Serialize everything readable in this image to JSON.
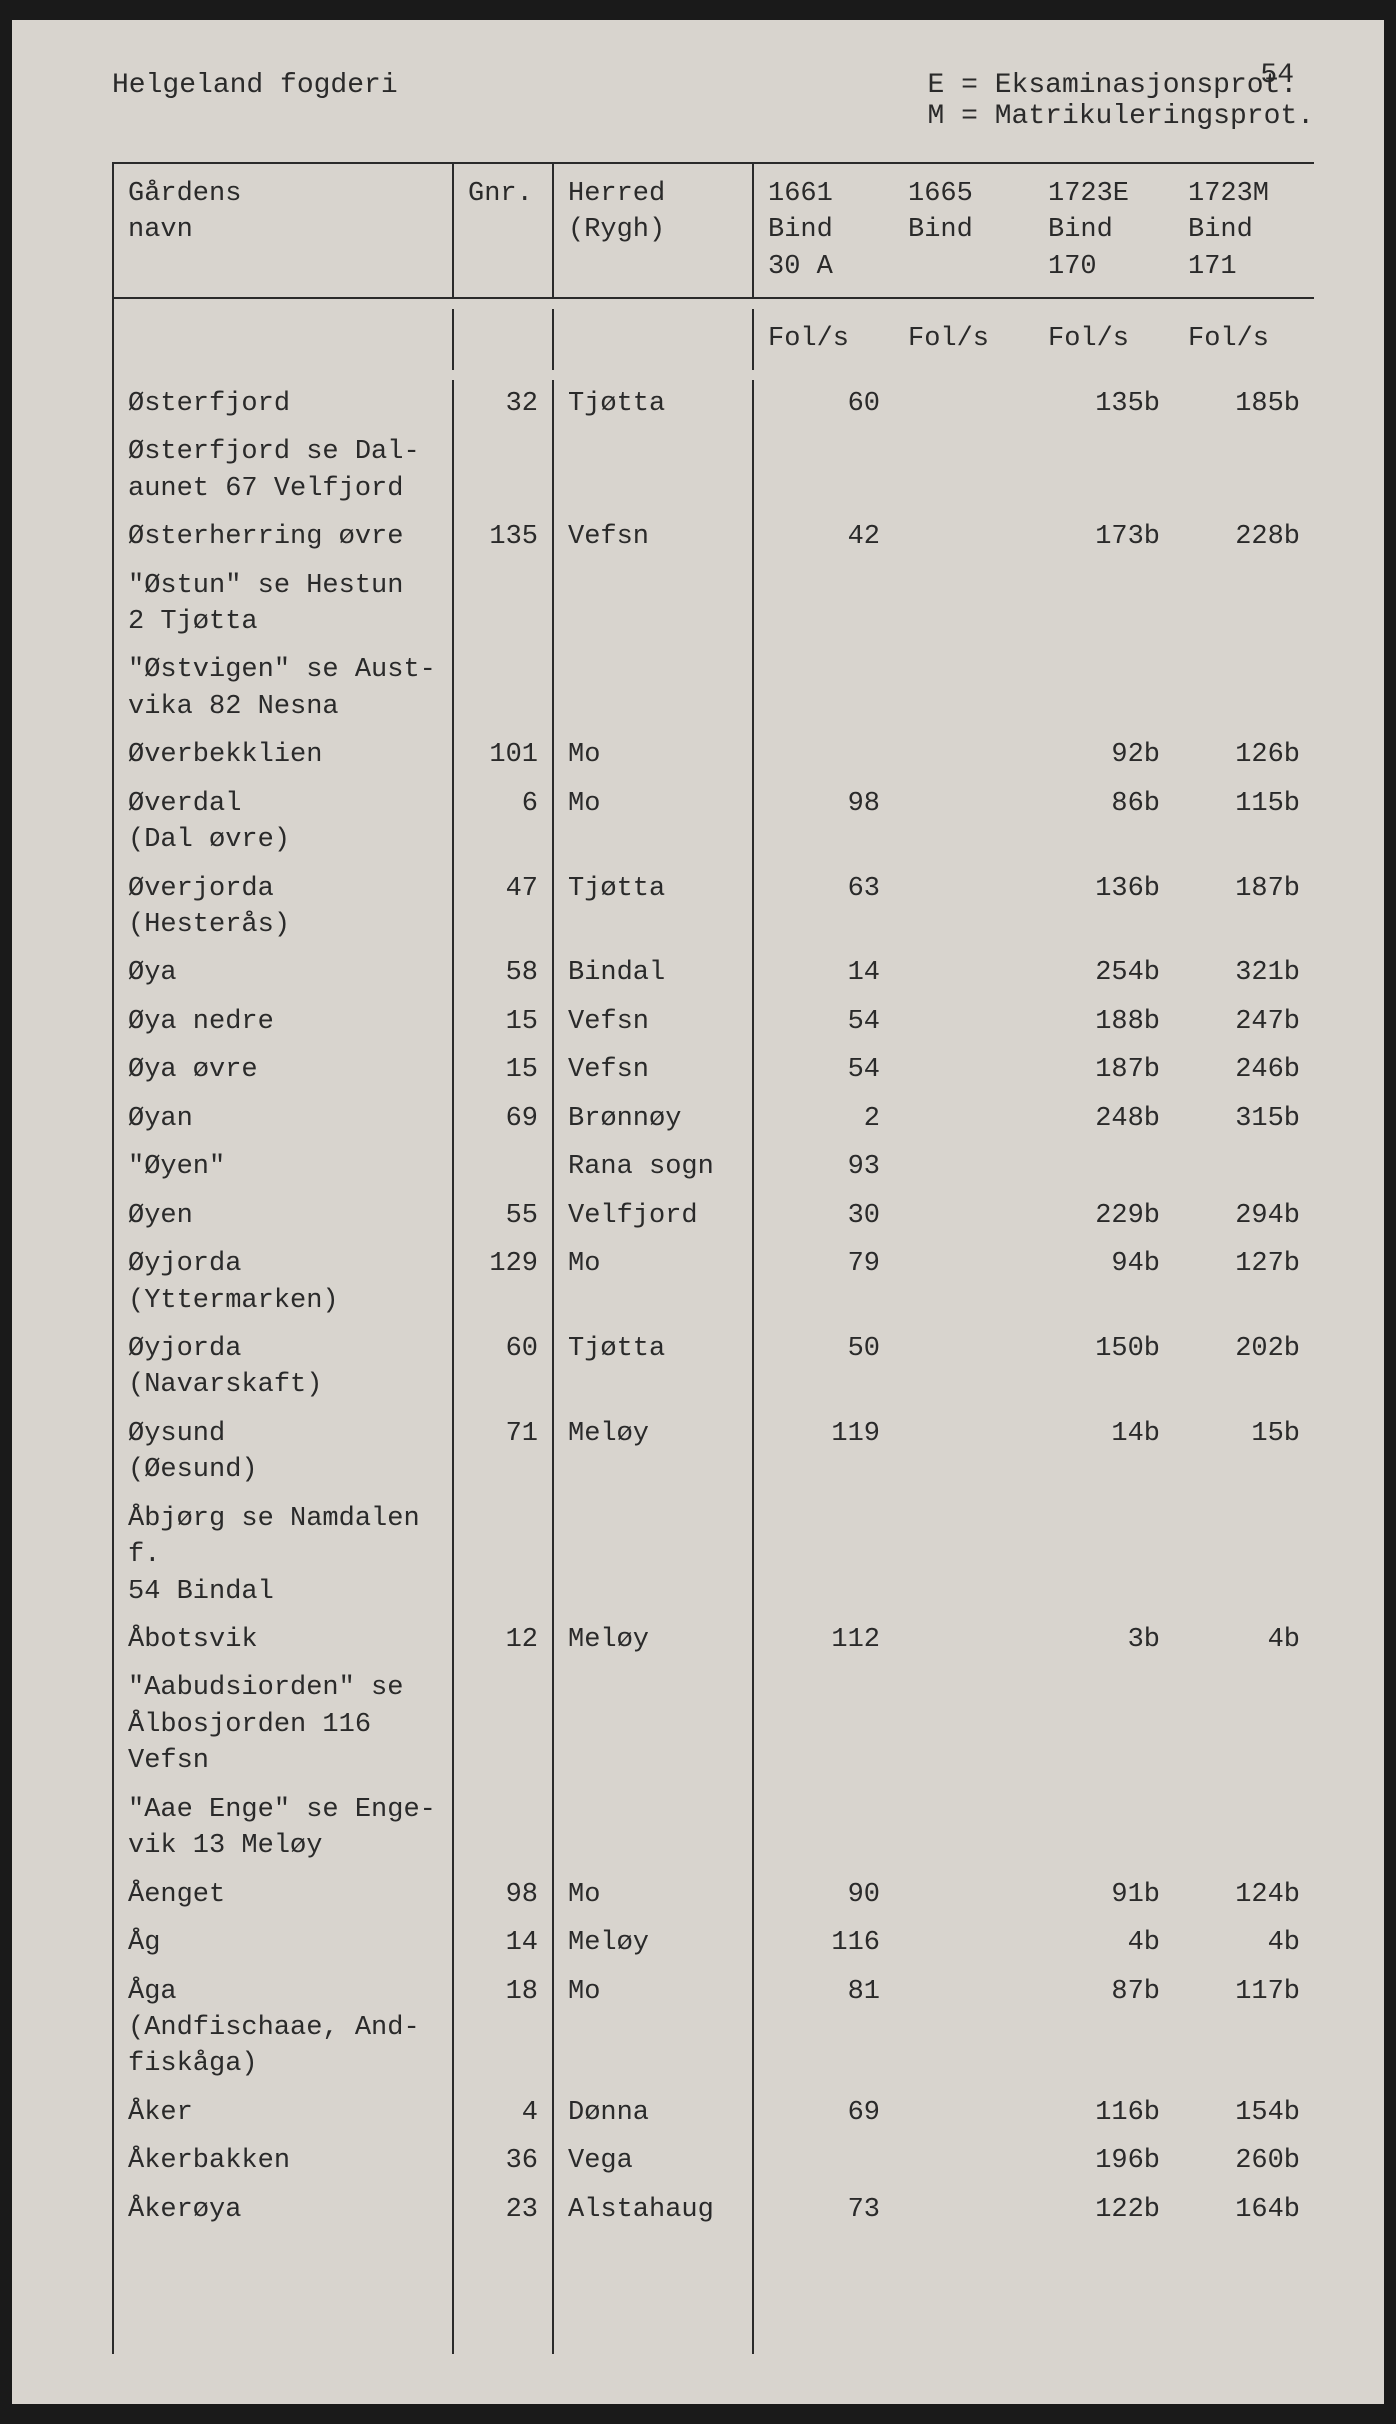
{
  "page_number": "54",
  "title": "Helgeland fogderi",
  "legend_line1": "E = Eksaminasjonsprot.",
  "legend_line2": "M = Matrikuleringsprot.",
  "colors": {
    "background": "#d8d4ce",
    "text": "#2a2a2a",
    "border": "#2a2a2a",
    "page_frame": "#1a1a1a"
  },
  "typography": {
    "font_family": "Courier New, monospace",
    "font_size_pt": 14,
    "header_size_pt": 14
  },
  "columns": {
    "name": "Gårdens\nnavn",
    "gnr": "Gnr.",
    "herred": "Herred\n(Rygh)",
    "c1661": "1661\nBind\n30 A",
    "c1665": "1665\nBind",
    "c1723e": "1723E\nBind\n170",
    "c1723m": "1723M\nBind\n171"
  },
  "subheader": {
    "c1661": "Fol/s",
    "c1665": "Fol/s",
    "c1723e": "Fol/s",
    "c1723m": "Fol/s"
  },
  "rows": [
    {
      "name": "Østerfjord",
      "gnr": "32",
      "herred": "Tjøtta",
      "c1661": "60",
      "c1665": "",
      "c1723e": "135b",
      "c1723m": "185b",
      "height": 1
    },
    {
      "name": "Østerfjord se Dal-\naunet 67 Velfjord",
      "gnr": "",
      "herred": "",
      "c1661": "",
      "c1665": "",
      "c1723e": "",
      "c1723m": "",
      "height": 2
    },
    {
      "name": "Østerherring øvre",
      "gnr": "135",
      "herred": "Vefsn",
      "c1661": "42",
      "c1665": "",
      "c1723e": "173b",
      "c1723m": "228b",
      "height": 1
    },
    {
      "name": "\"Østun\" se Hestun\n2 Tjøtta",
      "gnr": "",
      "herred": "",
      "c1661": "",
      "c1665": "",
      "c1723e": "",
      "c1723m": "",
      "height": 2
    },
    {
      "name": "\"Østvigen\" se Aust-\nvika 82 Nesna",
      "gnr": "",
      "herred": "",
      "c1661": "",
      "c1665": "",
      "c1723e": "",
      "c1723m": "",
      "height": 2
    },
    {
      "name": "Øverbekklien",
      "gnr": "101",
      "herred": "Mo",
      "c1661": "",
      "c1665": "",
      "c1723e": "92b",
      "c1723m": "126b",
      "height": 1
    },
    {
      "name": "Øverdal\n(Dal øvre)",
      "gnr": "6",
      "herred": "Mo",
      "c1661": "98",
      "c1665": "",
      "c1723e": "86b",
      "c1723m": "115b",
      "height": 2
    },
    {
      "name": "Øverjorda\n(Hesterås)",
      "gnr": "47",
      "herred": "Tjøtta",
      "c1661": "63",
      "c1665": "",
      "c1723e": "136b",
      "c1723m": "187b",
      "height": 2
    },
    {
      "name": "Øya",
      "gnr": "58",
      "herred": "Bindal",
      "c1661": "14",
      "c1665": "",
      "c1723e": "254b",
      "c1723m": "321b",
      "height": 1
    },
    {
      "name": "Øya nedre",
      "gnr": "15",
      "herred": "Vefsn",
      "c1661": "54",
      "c1665": "",
      "c1723e": "188b",
      "c1723m": "247b",
      "height": 1
    },
    {
      "name": "Øya øvre",
      "gnr": "15",
      "herred": "Vefsn",
      "c1661": "54",
      "c1665": "",
      "c1723e": "187b",
      "c1723m": "246b",
      "height": 1
    },
    {
      "name": "Øyan",
      "gnr": "69",
      "herred": "Brønnøy",
      "c1661": "2",
      "c1665": "",
      "c1723e": "248b",
      "c1723m": "315b",
      "height": 1
    },
    {
      "name": "\"Øyen\"",
      "gnr": "",
      "herred": "Rana sogn",
      "c1661": "93",
      "c1665": "",
      "c1723e": "",
      "c1723m": "",
      "height": 1
    },
    {
      "name": "Øyen",
      "gnr": "55",
      "herred": "Velfjord",
      "c1661": "30",
      "c1665": "",
      "c1723e": "229b",
      "c1723m": "294b",
      "height": 1
    },
    {
      "name": "Øyjorda\n(Yttermarken)",
      "gnr": "129",
      "herred": "Mo",
      "c1661": "79",
      "c1665": "",
      "c1723e": "94b",
      "c1723m": "127b",
      "height": 2
    },
    {
      "name": "Øyjorda\n(Navarskaft)",
      "gnr": "60",
      "herred": "Tjøtta",
      "c1661": "50",
      "c1665": "",
      "c1723e": "150b",
      "c1723m": "202b",
      "height": 2
    },
    {
      "name": "Øysund\n(Øesund)",
      "gnr": "71",
      "herred": "Meløy",
      "c1661": "119",
      "c1665": "",
      "c1723e": "14b",
      "c1723m": "15b",
      "height": 2
    },
    {
      "name": "Åbjørg se Namdalen f.\n54 Bindal",
      "gnr": "",
      "herred": "",
      "c1661": "",
      "c1665": "",
      "c1723e": "",
      "c1723m": "",
      "height": 2
    },
    {
      "name": "Åbotsvik",
      "gnr": "12",
      "herred": "Meløy",
      "c1661": "112",
      "c1665": "",
      "c1723e": "3b",
      "c1723m": "4b",
      "height": 1
    },
    {
      "name": "\"Aabudsiorden\" se\nÅlbosjorden 116 Vefsn",
      "gnr": "",
      "herred": "",
      "c1661": "",
      "c1665": "",
      "c1723e": "",
      "c1723m": "",
      "height": 2
    },
    {
      "name": "\"Aae Enge\" se Enge-\nvik 13 Meløy",
      "gnr": "",
      "herred": "",
      "c1661": "",
      "c1665": "",
      "c1723e": "",
      "c1723m": "",
      "height": 2
    },
    {
      "name": "Åenget",
      "gnr": "98",
      "herred": "Mo",
      "c1661": "90",
      "c1665": "",
      "c1723e": "91b",
      "c1723m": "124b",
      "height": 1
    },
    {
      "name": "Åg",
      "gnr": "14",
      "herred": "Meløy",
      "c1661": "116",
      "c1665": "",
      "c1723e": "4b",
      "c1723m": "4b",
      "height": 1
    },
    {
      "name": "Åga\n(Andfischaae, And-\nfiskåga)",
      "gnr": "18",
      "herred": "Mo",
      "c1661": "81",
      "c1665": "",
      "c1723e": "87b",
      "c1723m": "117b",
      "height": 3
    },
    {
      "name": "Åker",
      "gnr": "4",
      "herred": "Dønna",
      "c1661": "69",
      "c1665": "",
      "c1723e": "116b",
      "c1723m": "154b",
      "height": 1
    },
    {
      "name": "Åkerbakken",
      "gnr": "36",
      "herred": "Vega",
      "c1661": "",
      "c1665": "",
      "c1723e": "196b",
      "c1723m": "260b",
      "height": 1
    },
    {
      "name": "Åkerøya",
      "gnr": "23",
      "herred": "Alstahaug",
      "c1661": "73",
      "c1665": "",
      "c1723e": "122b",
      "c1723m": "164b",
      "height": 1
    }
  ]
}
